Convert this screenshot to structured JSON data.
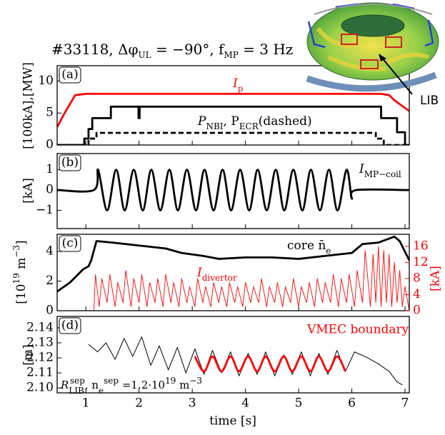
{
  "title": [
    "#33118, Δφ",
    "UL",
    " = −90°, f",
    "MP",
    " = 3 Hz"
  ],
  "inset_label": "LIB",
  "chart_data": [
    {
      "type": "line",
      "label": "(a)",
      "ylabel": "[100kA],[MW]",
      "ylim": [
        0,
        12.4
      ],
      "yticks": [
        0,
        5,
        10
      ],
      "annotations": [
        [
          "I",
          "p"
        ],
        [
          "P",
          "NBI",
          ", P",
          "ECR",
          "(dashed)"
        ]
      ],
      "series": [
        {
          "color": "#ff0000",
          "x": [
            0.46,
            0.6,
            0.8,
            1.0,
            6.55,
            6.7,
            6.8,
            7.08
          ],
          "values": [
            2.8,
            5,
            7.8,
            8.0,
            8.0,
            7.8,
            7.0,
            5.3
          ]
        },
        {
          "color": "#000000",
          "x": [
            0.46,
            0.97,
            0.97,
            1.05,
            1.05,
            1.12,
            1.12,
            1.47,
            1.47,
            1.99,
            1.99,
            2.01,
            2.01,
            6.55,
            6.55,
            6.85,
            6.85,
            7.0,
            7.0,
            7.08
          ],
          "values": [
            0,
            0,
            1,
            1,
            2.5,
            2.5,
            4.2,
            4.2,
            6,
            6,
            4.2,
            4.2,
            6,
            6,
            4.2,
            4.2,
            2,
            2,
            0,
            0
          ]
        },
        {
          "color": "#000000",
          "linestyle": "dashed",
          "x": [
            0.46,
            1.05,
            1.05,
            1.2,
            1.2,
            6.45,
            6.45,
            6.6,
            6.6,
            7.08
          ],
          "values": [
            0,
            0,
            1,
            1,
            1.9,
            1.9,
            1,
            1,
            0,
            0
          ]
        }
      ]
    },
    {
      "type": "line",
      "label": "(b)",
      "ylabel": "[kA]",
      "ylim": [
        -1.9,
        1.8
      ],
      "yticks": [
        {
          "value": -1,
          "label": "−1"
        },
        0,
        1
      ],
      "annotations": [
        [
          "I",
          "MP−coil"
        ]
      ],
      "series": [
        {
          "color": "#000000",
          "smooth": true,
          "x": [
            0.46,
            1.15,
            1.23,
            1.4,
            1.57,
            1.73,
            1.9,
            2.07,
            2.23,
            2.4,
            2.57,
            2.73,
            2.9,
            3.07,
            3.23,
            3.4,
            3.57,
            3.73,
            3.9,
            4.07,
            4.23,
            4.4,
            4.57,
            4.73,
            4.9,
            5.07,
            5.23,
            5.4,
            5.57,
            5.73,
            5.9,
            6.0,
            6.08,
            7.08
          ],
          "values": [
            0,
            0,
            1,
            -1,
            1,
            -1,
            1,
            -1,
            1,
            -1,
            1,
            -1,
            1,
            -1,
            1,
            -1,
            1,
            -1,
            1,
            -1,
            1,
            -1,
            1,
            -1,
            1,
            -1,
            1,
            -1,
            1,
            -1,
            1,
            -0.4,
            0,
            0
          ]
        }
      ]
    },
    {
      "type": "line",
      "label": "(c)",
      "ylabel": [
        "[10",
        "19",
        " m",
        "−3",
        "]"
      ],
      "y2label": "[kA]",
      "ylim": [
        0,
        5.16
      ],
      "yticks": [
        0,
        2,
        4
      ],
      "y2lim": [
        0,
        19
      ],
      "y2ticks": [
        0,
        4,
        8,
        12,
        16
      ],
      "y2color": "#ff0000",
      "annotations": [
        [
          "core n̄",
          "e"
        ],
        [
          "I",
          "divertor"
        ]
      ],
      "series": [
        {
          "color": "#000000",
          "x": [
            0.46,
            0.7,
            0.95,
            1.05,
            1.1,
            1.2,
            1.5,
            2.0,
            2.5,
            2.8,
            3.2,
            3.5,
            4.0,
            4.5,
            5.0,
            5.5,
            6.0,
            6.2,
            6.5,
            6.8,
            6.9,
            7.08
          ],
          "values": [
            1.3,
            1.9,
            2.8,
            3.0,
            3.4,
            4.7,
            4.6,
            4.4,
            4.2,
            3.9,
            3.7,
            3.5,
            3.6,
            3.6,
            3.5,
            3.7,
            3.9,
            4.5,
            4.6,
            5.0,
            4.7,
            3.4
          ]
        },
        {
          "color": "#ff0000",
          "axis": "y2",
          "x": [
            0.46,
            1.15,
            1.18,
            1.25,
            1.3,
            1.4,
            1.45,
            1.55,
            1.6,
            1.7,
            1.75,
            1.85,
            1.9,
            2.0,
            2.05,
            2.15,
            2.2,
            2.3,
            2.35,
            2.45,
            2.5,
            2.6,
            2.65,
            2.75,
            2.8,
            2.9,
            2.95,
            3.05,
            3.1,
            3.2,
            3.25,
            3.35,
            3.4,
            3.5,
            3.55,
            3.65,
            3.7,
            3.8,
            3.85,
            3.95,
            4.0,
            4.1,
            4.15,
            4.25,
            4.3,
            4.4,
            4.45,
            4.55,
            4.6,
            4.7,
            4.75,
            4.85,
            4.9,
            5.0,
            5.05,
            5.15,
            5.2,
            5.3,
            5.35,
            5.45,
            5.5,
            5.6,
            5.65,
            5.75,
            5.8,
            5.9,
            5.95,
            6.05,
            6.1,
            6.2,
            6.25,
            6.35,
            6.4,
            6.45,
            6.5,
            6.55,
            6.6,
            6.65,
            6.7,
            6.75,
            6.8,
            6.85,
            6.9,
            6.95,
            7.0,
            7.08
          ],
          "values": [
            0,
            0,
            9,
            1,
            8,
            2,
            9,
            1,
            7,
            2,
            10,
            1,
            8,
            2,
            9,
            1,
            7,
            2,
            8,
            1,
            9,
            2,
            7,
            1,
            8,
            2,
            6,
            1,
            8,
            2,
            6,
            1,
            7,
            2,
            6,
            1,
            7,
            2,
            6,
            1,
            7,
            2,
            6,
            2,
            8,
            1,
            6,
            2,
            7,
            1,
            6,
            2,
            8,
            1,
            6,
            2,
            7,
            1,
            8,
            2,
            7,
            2,
            9,
            1,
            8,
            2,
            9,
            1,
            10,
            2,
            15,
            1,
            14,
            2,
            16,
            1,
            15,
            2,
            14,
            1,
            12,
            2,
            10,
            1,
            6,
            0
          ]
        }
      ]
    },
    {
      "type": "line",
      "label": "(d)",
      "ylabel": "[m]",
      "xlabel": "time [s]",
      "xlim": [
        0.46,
        7.08
      ],
      "xticks": [
        1,
        2,
        3,
        4,
        5,
        6,
        7
      ],
      "ylim": [
        2.0967,
        2.1476
      ],
      "yticks": [
        {
          "value": 2.1,
          "label": "2.10"
        },
        2.11,
        2.12,
        2.13,
        2.14
      ],
      "annotations": [
        [
          "VMEC boundary"
        ],
        [
          "R",
          "LIB",
          "sep",
          ", n",
          "e",
          "sep",
          " =1.2·10",
          "19",
          " m",
          "−3"
        ]
      ],
      "series": [
        {
          "color": "#000000",
          "x": [
            1.05,
            1.22,
            1.38,
            1.55,
            1.72,
            1.88,
            2.05,
            2.22,
            2.38,
            2.55,
            2.72,
            2.88,
            3.05,
            3.22,
            3.38,
            3.55,
            3.72,
            3.88,
            4.05,
            4.22,
            4.38,
            4.55,
            4.72,
            4.88,
            5.05,
            5.22,
            5.38,
            5.55,
            5.72,
            5.88,
            6.05,
            6.3,
            6.5,
            6.7,
            6.85,
            6.95
          ],
          "values": [
            2.129,
            2.124,
            2.13,
            2.119,
            2.133,
            2.121,
            2.134,
            2.115,
            2.128,
            2.112,
            2.127,
            2.11,
            2.126,
            2.109,
            2.125,
            2.11,
            2.124,
            2.108,
            2.123,
            2.109,
            2.124,
            2.108,
            2.122,
            2.109,
            2.124,
            2.108,
            2.123,
            2.109,
            2.125,
            2.111,
            2.124,
            2.12,
            2.116,
            2.111,
            2.104,
            2.102
          ]
        },
        {
          "color": "#ff0000",
          "smooth": true,
          "x": [
            3.05,
            3.22,
            3.38,
            3.55,
            3.72,
            3.88,
            4.05,
            4.22,
            4.38,
            4.55,
            4.72,
            4.88,
            5.05,
            5.22,
            5.38,
            5.55,
            5.72,
            5.88
          ],
          "values": [
            2.121,
            2.111,
            2.121,
            2.111,
            2.121,
            2.111,
            2.121,
            2.111,
            2.121,
            2.111,
            2.121,
            2.111,
            2.121,
            2.111,
            2.121,
            2.111,
            2.121,
            2.111
          ]
        }
      ]
    }
  ]
}
